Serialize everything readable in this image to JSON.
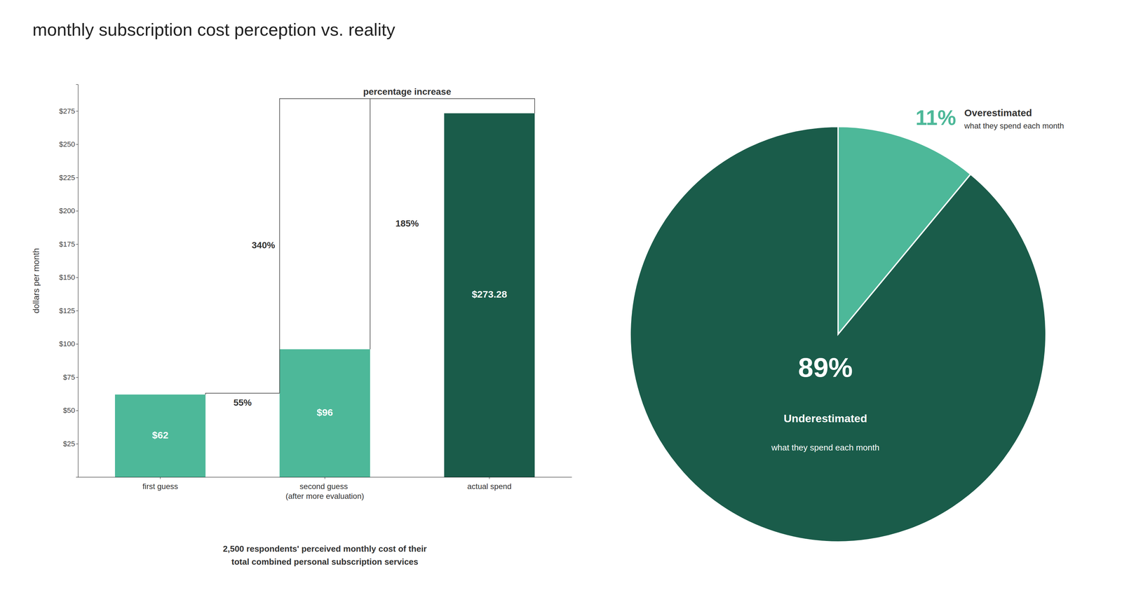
{
  "chart_data": [
    {
      "type": "bar",
      "title": "monthly subscription cost perception vs. reality",
      "categories": [
        "first guess",
        "second guess\n(after more evaluation)",
        "actual spend"
      ],
      "values": [
        62,
        96,
        273.28
      ],
      "value_labels": [
        "$62",
        "$96",
        "$273.28"
      ],
      "data_labels": true,
      "colors": [
        "#4db899",
        "#4db899",
        "#1a5c4a"
      ],
      "ylabel": "dollars per month",
      "ylim": [
        0,
        295
      ],
      "yticks": [
        {
          "value": 25,
          "label": "$25"
        },
        {
          "value": 50,
          "label": "$50"
        },
        {
          "value": 75,
          "label": "$75"
        },
        {
          "value": 100,
          "label": "$100"
        },
        {
          "value": 125,
          "label": "$125"
        },
        {
          "value": 150,
          "label": "$150"
        },
        {
          "value": 175,
          "label": "$175"
        },
        {
          "value": 200,
          "label": "$200"
        },
        {
          "value": 225,
          "label": "$225"
        },
        {
          "value": 250,
          "label": "$250"
        },
        {
          "value": 275,
          "label": "$275"
        }
      ],
      "annotations": [
        "percentage increase",
        "55%",
        "185%",
        "340%"
      ],
      "footnote": [
        "2,500 respondents' perceived monthly cost of their",
        "total combined personal subscription services"
      ]
    },
    {
      "type": "pie",
      "categories": [
        "Overestimated",
        "Underestimated"
      ],
      "values": [
        11,
        89
      ],
      "value_labels": [
        "11%",
        "89%"
      ],
      "data_labels": true,
      "colors": [
        "#4db899",
        "#1a5c4a"
      ],
      "annotations": [
        "what they spend each month",
        "what they spend each month"
      ]
    }
  ]
}
